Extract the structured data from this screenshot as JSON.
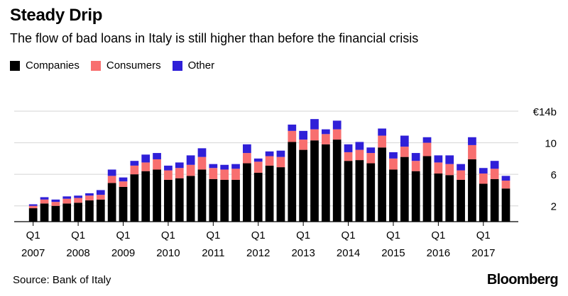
{
  "header": {
    "title": "Steady Drip",
    "subtitle": "The flow of bad loans in Italy is still higher than before the financial crisis"
  },
  "legend": [
    {
      "label": "Companies",
      "color": "#000000"
    },
    {
      "label": "Consumers",
      "color": "#f86f6f"
    },
    {
      "label": "Other",
      "color": "#2f1fd8"
    }
  ],
  "footer": {
    "source": "Source: Bank of Italy",
    "brand": "Bloomberg"
  },
  "chart_data": {
    "type": "bar",
    "stacked": true,
    "ylim": [
      0,
      14
    ],
    "y_ticks": [
      2,
      6,
      10,
      14
    ],
    "y_tick_labels": [
      "2",
      "6",
      "10",
      "€14b"
    ],
    "y_axis_side": "right",
    "grid": true,
    "x_tick_quarter_label": "Q1",
    "years": [
      "2007",
      "2008",
      "2009",
      "2010",
      "2011",
      "2012",
      "2013",
      "2014",
      "2015",
      "2016",
      "2017"
    ],
    "categories": [
      "2007 Q1",
      "2007 Q2",
      "2007 Q3",
      "2007 Q4",
      "2008 Q1",
      "2008 Q2",
      "2008 Q3",
      "2008 Q4",
      "2009 Q1",
      "2009 Q2",
      "2009 Q3",
      "2009 Q4",
      "2010 Q1",
      "2010 Q2",
      "2010 Q3",
      "2010 Q4",
      "2011 Q1",
      "2011 Q2",
      "2011 Q3",
      "2011 Q4",
      "2012 Q1",
      "2012 Q2",
      "2012 Q3",
      "2012 Q4",
      "2013 Q1",
      "2013 Q2",
      "2013 Q3",
      "2013 Q4",
      "2014 Q1",
      "2014 Q2",
      "2014 Q3",
      "2014 Q4",
      "2015 Q1",
      "2015 Q2",
      "2015 Q3",
      "2015 Q4",
      "2016 Q1",
      "2016 Q2",
      "2016 Q3",
      "2016 Q4",
      "2017 Q1",
      "2017 Q2",
      "2017 Q3"
    ],
    "series": [
      {
        "name": "Companies",
        "color": "#000000",
        "values": [
          1.7,
          2.3,
          2.0,
          2.3,
          2.4,
          2.7,
          2.8,
          4.9,
          4.4,
          6.0,
          6.4,
          6.6,
          5.3,
          5.5,
          5.8,
          6.6,
          5.4,
          5.3,
          5.3,
          7.4,
          6.2,
          7.1,
          6.9,
          10.1,
          9.1,
          10.3,
          9.8,
          10.4,
          7.7,
          7.8,
          7.4,
          9.4,
          6.6,
          8.2,
          6.4,
          8.3,
          6.1,
          5.9,
          5.3,
          7.9,
          4.8,
          5.4,
          4.2
        ]
      },
      {
        "name": "Consumers",
        "color": "#f86f6f",
        "values": [
          0.3,
          0.5,
          0.5,
          0.6,
          0.6,
          0.6,
          0.6,
          0.9,
          0.7,
          1.1,
          1.1,
          1.3,
          1.2,
          1.3,
          1.4,
          1.6,
          1.4,
          1.3,
          1.4,
          1.3,
          1.4,
          1.2,
          1.3,
          1.4,
          1.3,
          1.4,
          1.3,
          1.3,
          1.1,
          1.3,
          1.3,
          1.5,
          1.4,
          1.3,
          1.3,
          1.7,
          1.4,
          1.4,
          1.2,
          1.8,
          1.3,
          1.3,
          1.0
        ]
      },
      {
        "name": "Other",
        "color": "#2f1fd8",
        "values": [
          0.2,
          0.3,
          0.3,
          0.3,
          0.3,
          0.3,
          0.6,
          0.8,
          0.5,
          0.6,
          1.0,
          0.8,
          0.6,
          0.7,
          1.2,
          1.1,
          0.5,
          0.6,
          0.6,
          1.1,
          0.4,
          0.6,
          0.8,
          0.8,
          1.1,
          1.3,
          0.6,
          1.1,
          1.0,
          1.0,
          0.7,
          0.9,
          0.8,
          1.4,
          1.0,
          0.7,
          0.9,
          1.1,
          0.8,
          1.0,
          0.7,
          1.0,
          0.6
        ]
      }
    ]
  }
}
